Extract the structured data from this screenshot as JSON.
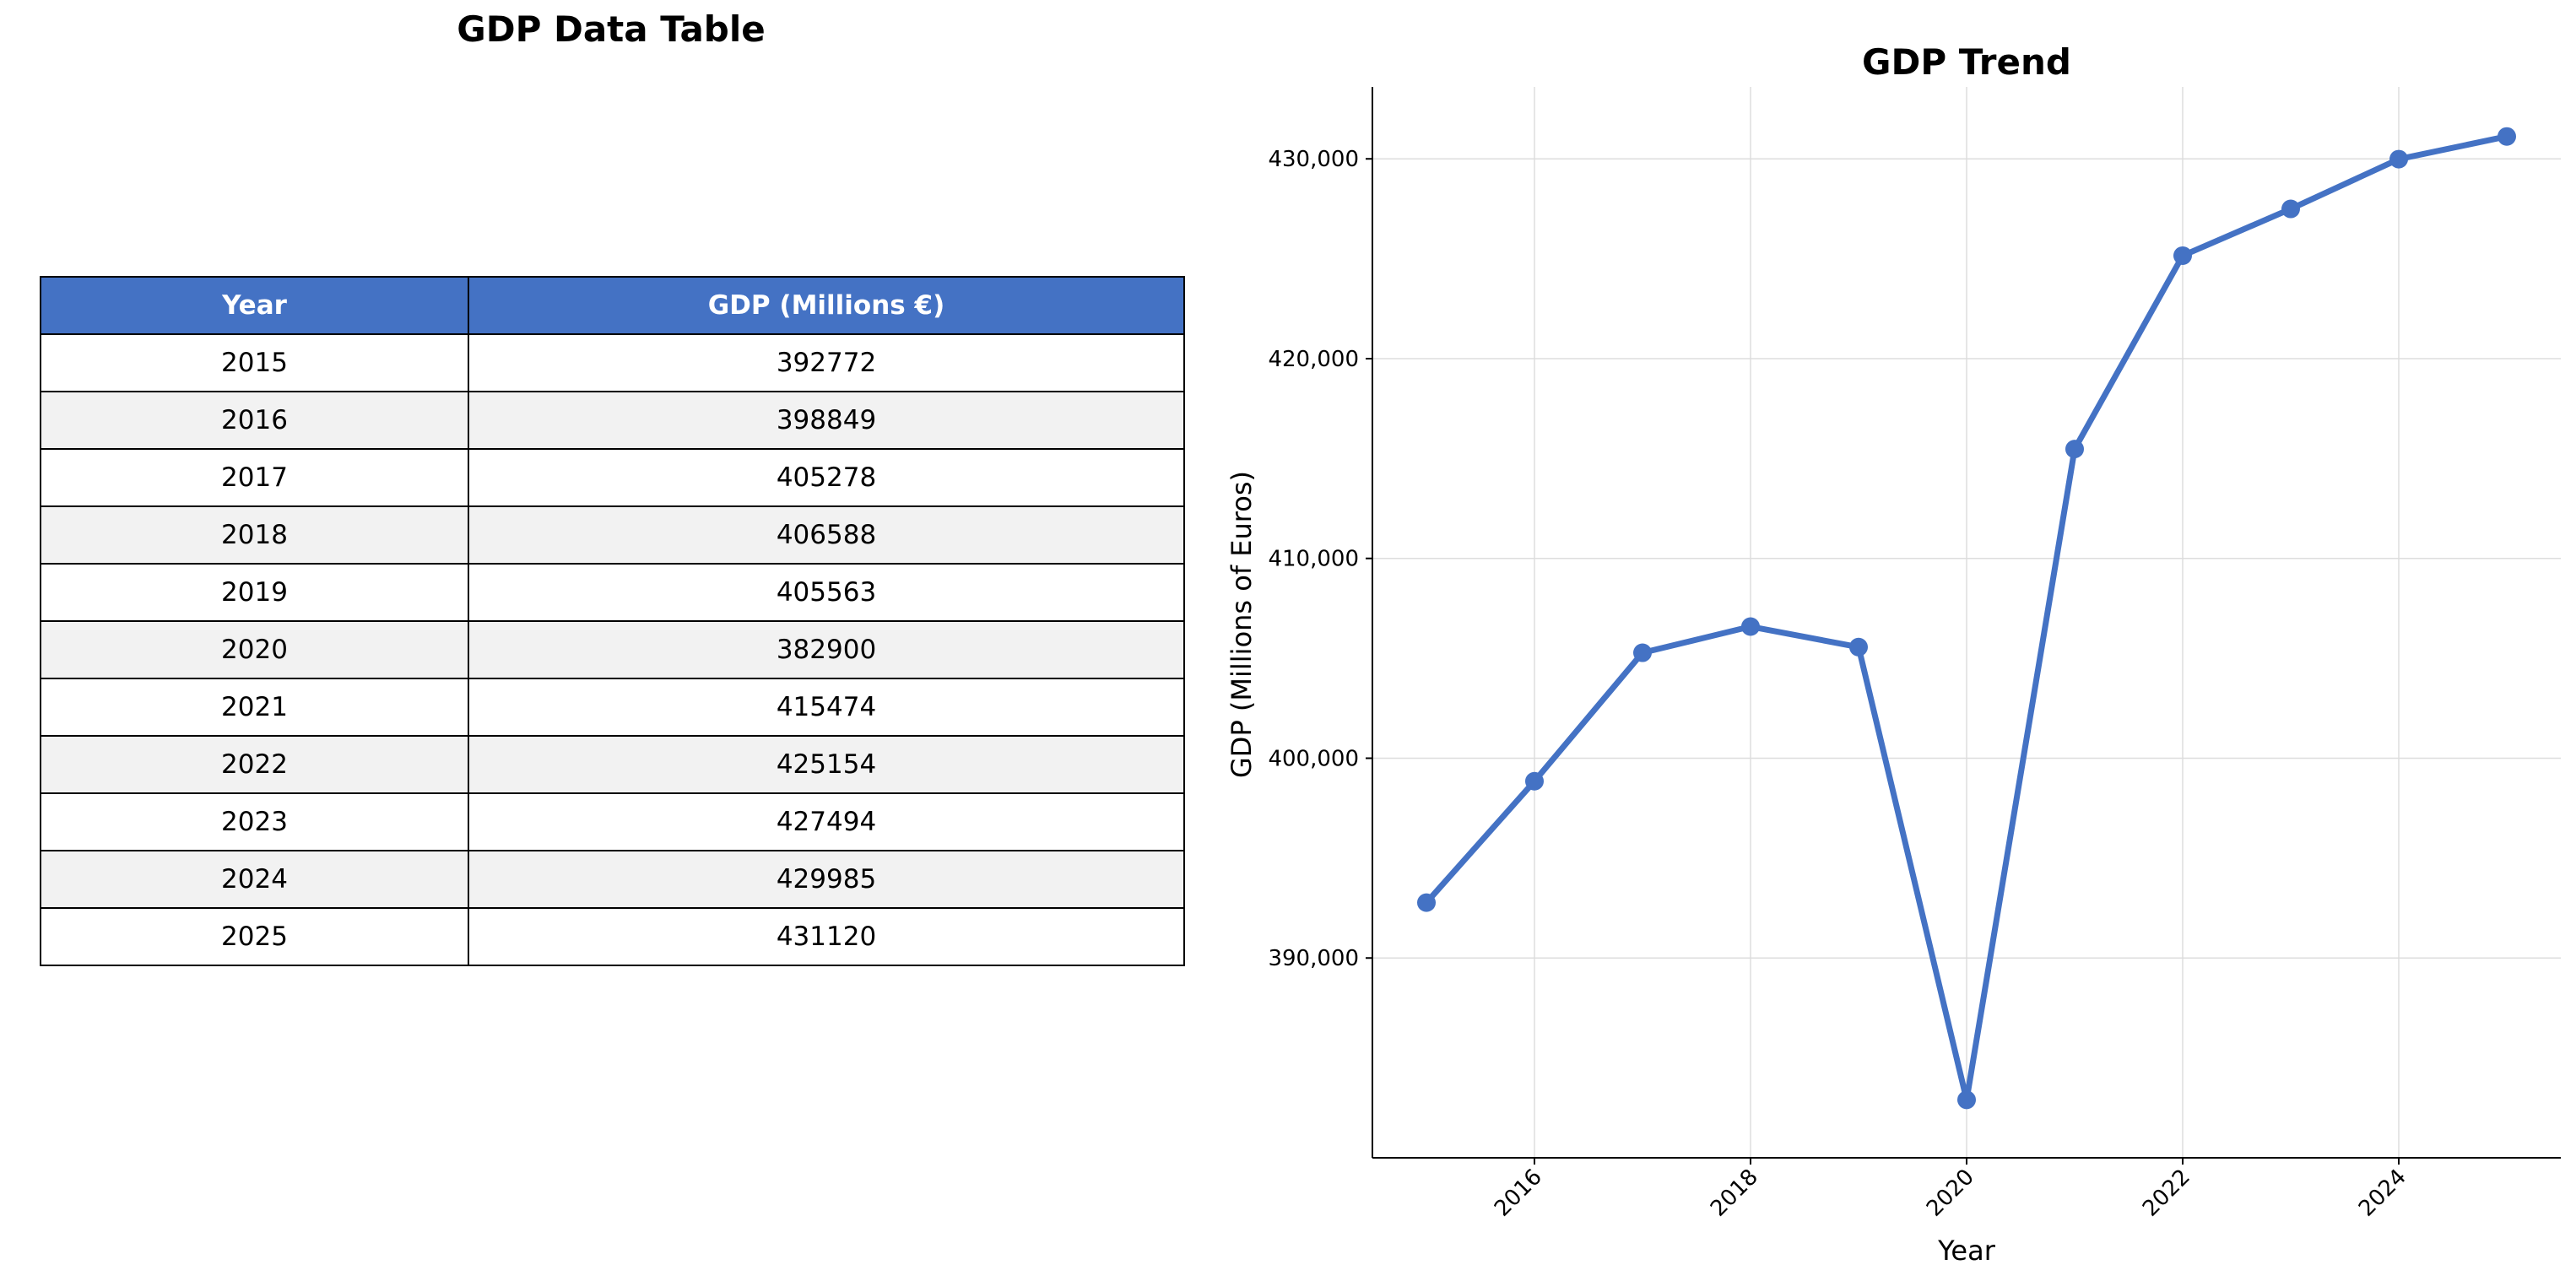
{
  "table": {
    "title": "GDP Data Table",
    "headers": [
      "Year",
      "GDP (Millions €)"
    ],
    "rows": [
      [
        "2015",
        "392772"
      ],
      [
        "2016",
        "398849"
      ],
      [
        "2017",
        "405278"
      ],
      [
        "2018",
        "406588"
      ],
      [
        "2019",
        "405563"
      ],
      [
        "2020",
        "382900"
      ],
      [
        "2021",
        "415474"
      ],
      [
        "2022",
        "425154"
      ],
      [
        "2023",
        "427494"
      ],
      [
        "2024",
        "429985"
      ],
      [
        "2025",
        "431120"
      ]
    ],
    "header_color": "#4472c4",
    "stripe_color": "#f2f2f2"
  },
  "chart_data": {
    "type": "line",
    "title": "GDP Trend",
    "xlabel": "Year",
    "ylabel": "GDP (Millions of Euros)",
    "x": [
      2015,
      2016,
      2017,
      2018,
      2019,
      2020,
      2021,
      2022,
      2023,
      2024,
      2025
    ],
    "series": [
      {
        "values": [
          392772,
          398849,
          405278,
          406588,
          405563,
          382900,
          415474,
          425154,
          427494,
          429985,
          431120
        ]
      }
    ],
    "xlim": [
      2014.5,
      2025.5
    ],
    "ylim": [
      380000,
      433600
    ],
    "xticks": [
      2016,
      2018,
      2020,
      2022,
      2024
    ],
    "xtick_labels": [
      "2016",
      "2018",
      "2020",
      "2022",
      "2024"
    ],
    "yticks": [
      390000,
      400000,
      410000,
      420000,
      430000
    ],
    "ytick_labels": [
      "390,000",
      "400,000",
      "410,000",
      "420,000",
      "430,000"
    ],
    "grid": true,
    "line_color": "#4472c4"
  }
}
